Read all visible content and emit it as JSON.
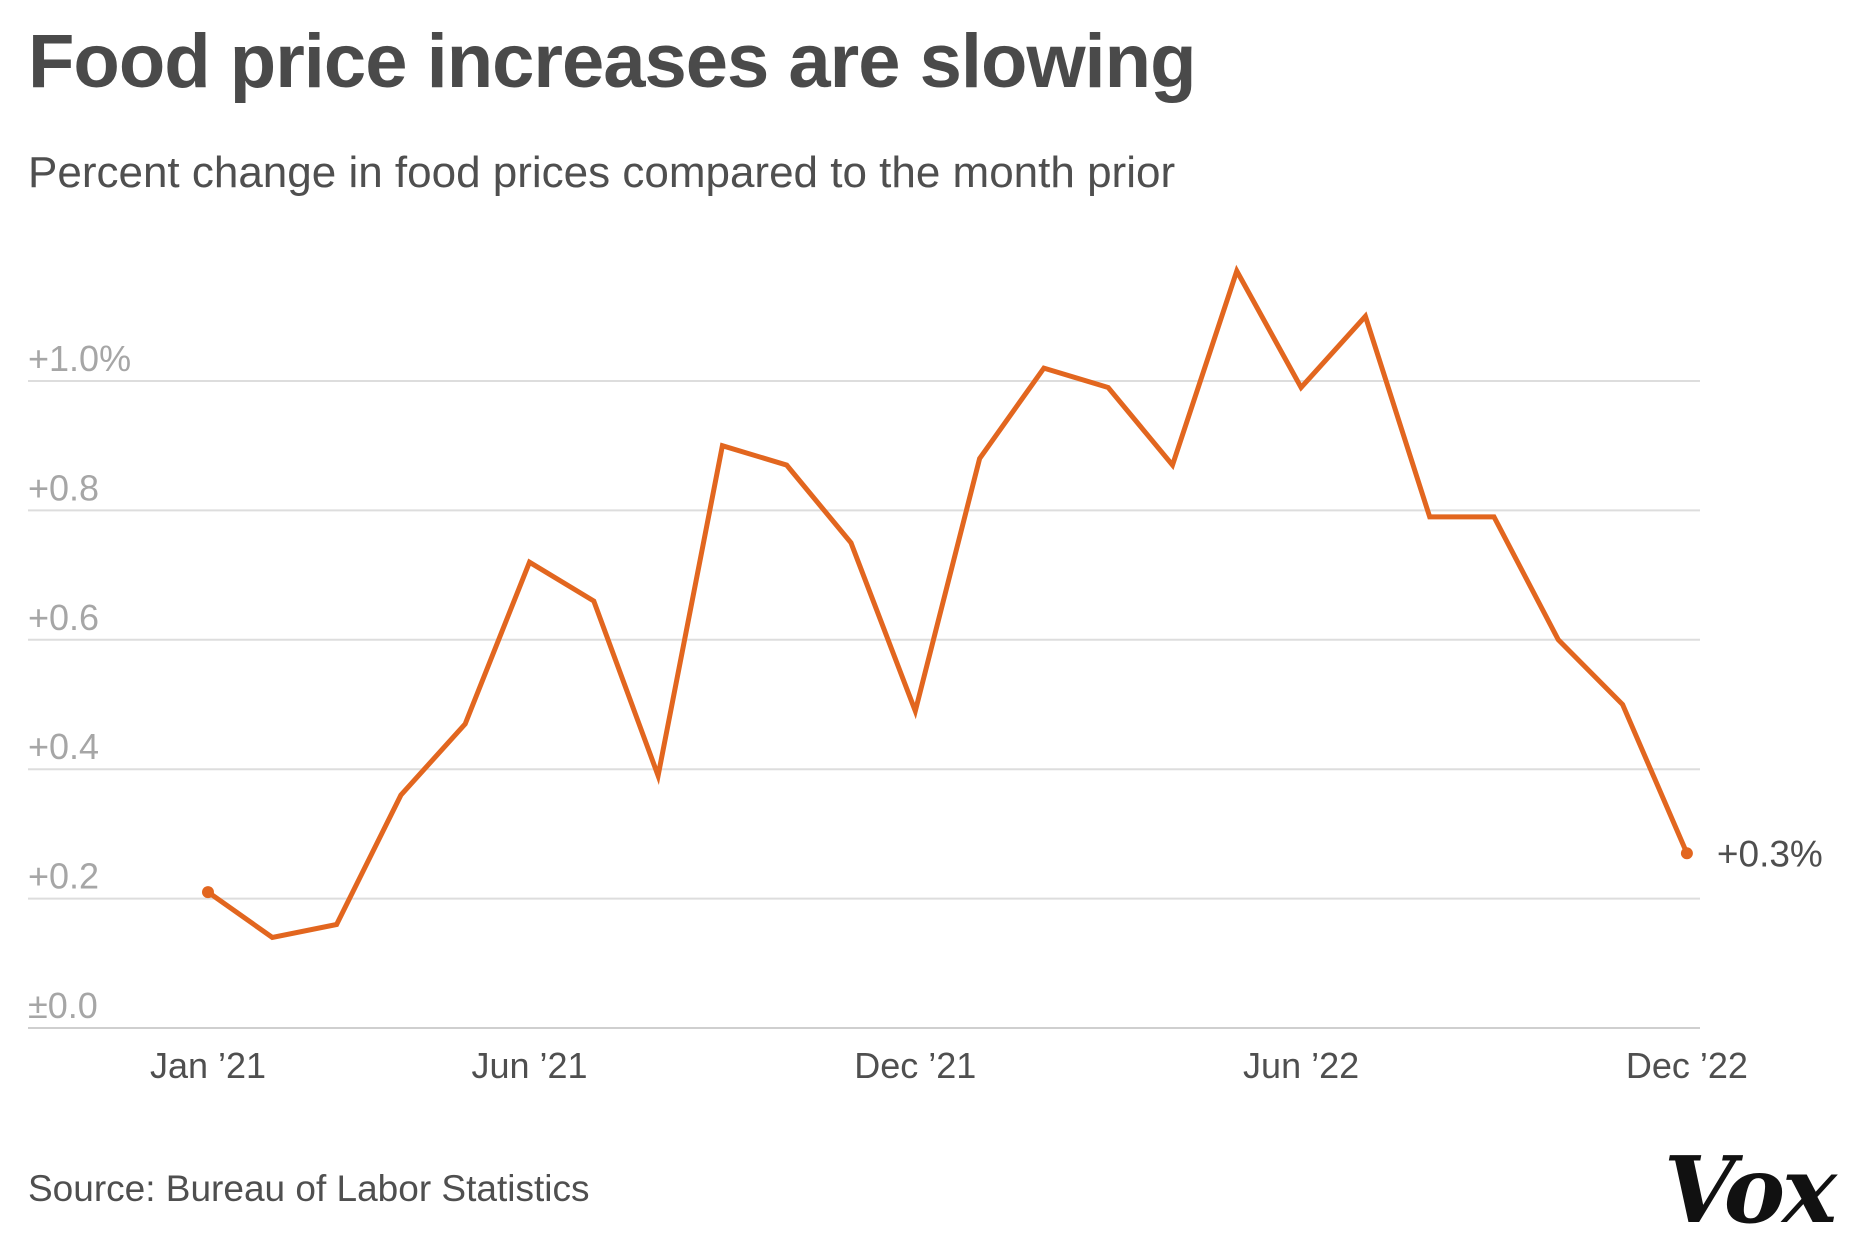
{
  "title": "Food price increases are slowing",
  "subtitle": "Percent change in food prices compared to the month prior",
  "source": "Source: Bureau of Labor Statistics",
  "logo": "Vox",
  "colors": {
    "line": "#e2661f",
    "grid": "#dddddd",
    "tick_text": "#a6a6a6",
    "text": "#4f4f4f"
  },
  "chart_data": {
    "type": "line",
    "title": "Food price increases are slowing",
    "subtitle": "Percent change in food prices compared to the month prior",
    "xlabel": "",
    "ylabel": "",
    "x": [
      "Jan '21",
      "Feb '21",
      "Mar '21",
      "Apr '21",
      "May '21",
      "Jun '21",
      "Jul '21",
      "Aug '21",
      "Sep '21",
      "Oct '21",
      "Nov '21",
      "Dec '21",
      "Jan '22",
      "Feb '22",
      "Mar '22",
      "Apr '22",
      "May '22",
      "Jun '22",
      "Jul '22",
      "Aug '22",
      "Sep '22",
      "Oct '22",
      "Nov '22",
      "Dec '22"
    ],
    "series": [
      {
        "values": [
          0.21,
          0.14,
          0.16,
          0.36,
          0.47,
          0.72,
          0.66,
          0.39,
          0.9,
          0.87,
          0.75,
          0.49,
          0.88,
          1.02,
          0.99,
          0.87,
          1.17,
          0.99,
          1.1,
          0.79,
          0.79,
          0.6,
          0.5,
          0.27
        ]
      }
    ],
    "x_tick_labels": [
      "Jan ’21",
      "Jun ’21",
      "Dec ’21",
      "Jun ’22",
      "Dec ’22"
    ],
    "x_tick_indices": [
      0,
      5,
      11,
      17,
      23
    ],
    "y_ticks": [
      0,
      0.2,
      0.4,
      0.6,
      0.8,
      1.0
    ],
    "y_tick_labels": [
      "±0.0",
      "+0.2",
      "+0.4",
      "+0.6",
      "+0.8",
      "+1.0%"
    ],
    "ylim": [
      0,
      1.2
    ],
    "end_label": "+0.3%",
    "grid": true,
    "legend": "none"
  }
}
